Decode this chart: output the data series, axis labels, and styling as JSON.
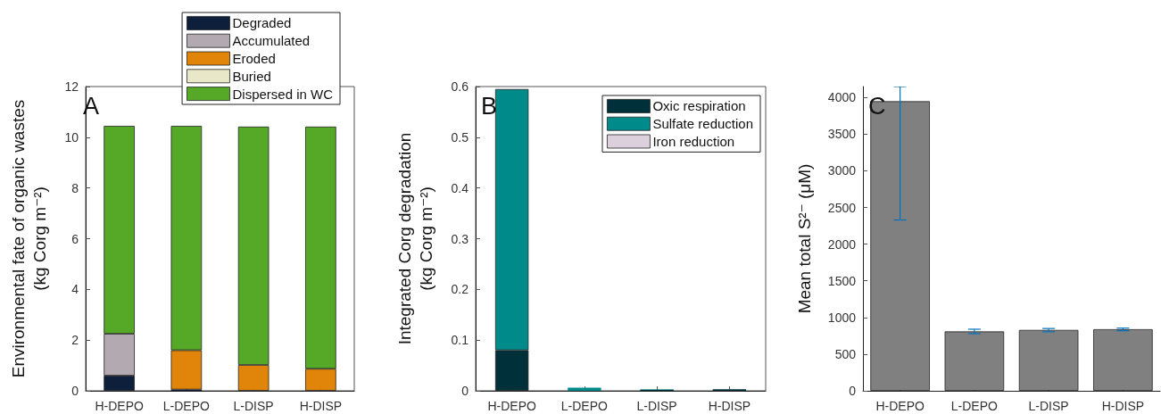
{
  "chart_data": [
    {
      "type": "bar",
      "stacked": true,
      "ylabel": "Environmental fate of organic wastes\n(kg Corg m⁻²)",
      "annotations": [
        "A"
      ],
      "categories": [
        "H-DEPO",
        "L-DEPO",
        "L-DISP",
        "H-DISP"
      ],
      "ylim": [
        0,
        12
      ],
      "yticks": [
        0,
        2,
        4,
        6,
        8,
        10,
        12
      ],
      "legend": "top right",
      "series": [
        {
          "name": "Degraded",
          "color": "#0d1f3a",
          "values": [
            0.6,
            0.05,
            null,
            null
          ]
        },
        {
          "name": "Accumulated",
          "color": "#b3a9b0",
          "values": [
            1.65,
            0,
            0,
            0
          ]
        },
        {
          "name": "Eroded",
          "color": "#e0850a",
          "values": [
            0,
            1.55,
            1.02,
            0.87
          ]
        },
        {
          "name": "Buried",
          "color": "#e8e8c8",
          "values": [
            0,
            0,
            0,
            0
          ]
        },
        {
          "name": "Dispersed in WC",
          "color": "#56a926",
          "values": [
            8.2,
            8.85,
            9.4,
            9.55
          ]
        }
      ]
    },
    {
      "type": "bar",
      "stacked": true,
      "ylabel": "Integrated Corg degradation\n(kg Corg m⁻²)",
      "annotations": [
        "B"
      ],
      "categories": [
        "H-DEPO",
        "L-DEPO",
        "L-DISP",
        "H-DISP"
      ],
      "ylim": [
        0,
        0.6
      ],
      "yticks": [
        0,
        0.1,
        0.2,
        0.3,
        0.4,
        0.5,
        0.6
      ],
      "legend": "top right",
      "series": [
        {
          "name": "Oxic respiration",
          "color": "#00303a",
          "values": [
            0.08,
            null,
            0.002,
            0.003
          ]
        },
        {
          "name": "Sulfate reduction",
          "color": "#008b8b",
          "values": [
            0.515,
            0.006,
            0.001,
            0
          ]
        },
        {
          "name": "Iron reduction",
          "color": "#dcd0dc",
          "values": [
            0,
            0,
            0,
            0
          ]
        }
      ]
    },
    {
      "type": "bar",
      "ylabel": "Mean total S²⁻ (μM)",
      "annotations": [
        "C"
      ],
      "categories": [
        "H-DEPO",
        "L-DEPO",
        "L-DISP",
        "H-DISP"
      ],
      "ylim": [
        0,
        4150
      ],
      "yticks": [
        0,
        500,
        1000,
        1500,
        2000,
        2500,
        3000,
        3500,
        4000
      ],
      "series": [
        {
          "color": "#808080",
          "values": [
            3950,
            810,
            830,
            840
          ],
          "errors": [
            [
              2330,
              4150
            ],
            [
              780,
              840
            ],
            [
              805,
              850
            ],
            [
              820,
              855
            ]
          ]
        }
      ]
    }
  ]
}
